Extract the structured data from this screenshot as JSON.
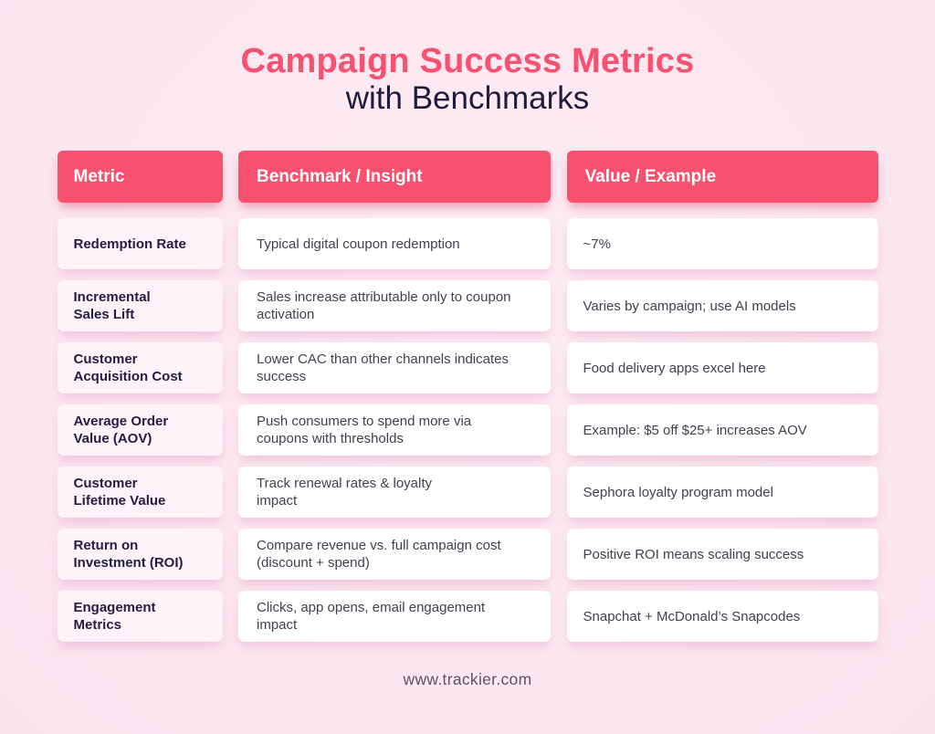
{
  "header": {
    "title": "Campaign Success Metrics",
    "subtitle": "with Benchmarks"
  },
  "chart_data": {
    "type": "table",
    "title": "Campaign Success Metrics with Benchmarks",
    "columns": [
      "Metric",
      "Benchmark / Insight",
      "Value / Example"
    ],
    "rows": [
      {
        "metric": "Redemption Rate",
        "benchmark": "Typical digital coupon redemption",
        "value": "~7%"
      },
      {
        "metric": "Incremental\nSales Lift",
        "benchmark": "Sales increase attributable only to coupon\nactivation",
        "value": "Varies by campaign; use AI models"
      },
      {
        "metric": "Customer\nAcquisition Cost",
        "benchmark": "Lower CAC than other channels indicates\nsuccess",
        "value": "Food delivery apps excel here"
      },
      {
        "metric": "Average Order\nValue (AOV)",
        "benchmark": "Push consumers to spend more via\ncoupons with thresholds",
        "value": "Example: $5 off $25+ increases AOV"
      },
      {
        "metric": "Customer\nLifetime Value",
        "benchmark": "Track renewal rates & loyalty\nimpact",
        "value": "Sephora loyalty program model"
      },
      {
        "metric": "Return on\nInvestment (ROI)",
        "benchmark": "Compare revenue vs. full campaign cost\n(discount + spend)",
        "value": "Positive ROI means scaling success"
      },
      {
        "metric": "Engagement\nMetrics",
        "benchmark": "Clicks, app opens, email engagement\nimpact",
        "value": "Snapchat + McDonald’s Snapcodes"
      }
    ]
  },
  "footer": {
    "url": "www.trackier.com"
  },
  "colors": {
    "accent_pink": "#f8506f",
    "background_pink": "#fce7f0",
    "heading_dark": "#1f1b3c",
    "metric_text": "#221d44",
    "body_text": "#43404e",
    "metric_cell_bg": "#fdf3f8",
    "cell_bg": "#ffffff"
  }
}
